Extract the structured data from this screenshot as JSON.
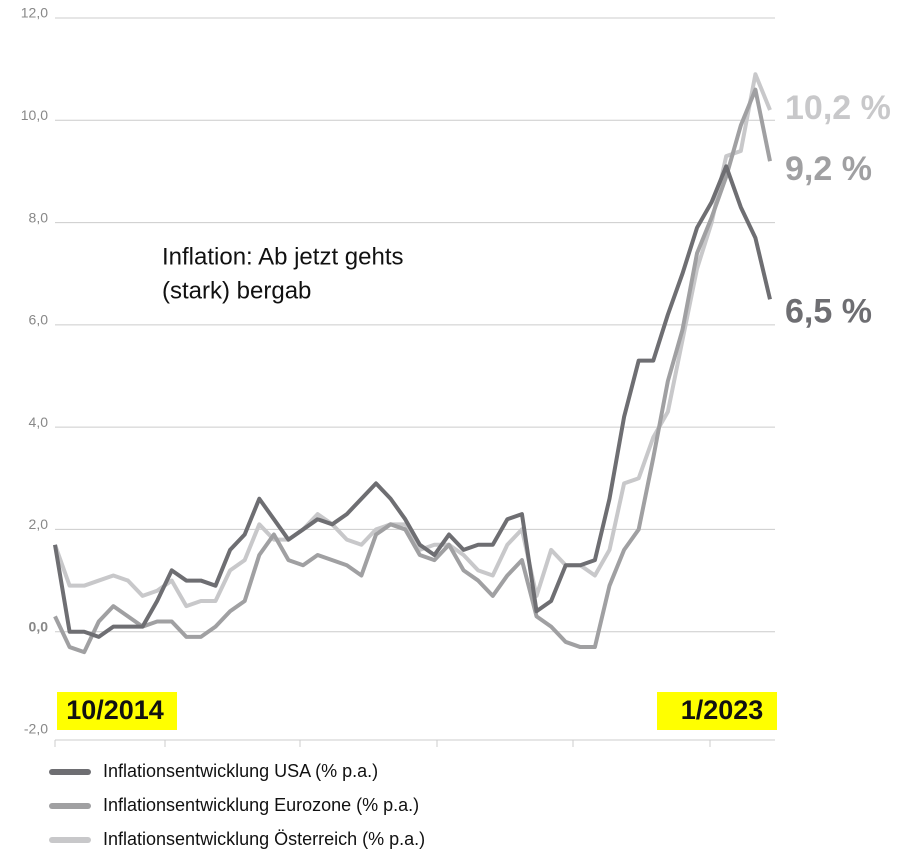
{
  "chart_data": {
    "type": "line",
    "annotation": [
      "Inflation: Ab jetzt gehts",
      "(stark) bergab"
    ],
    "categories": [
      "10/2014",
      null,
      null,
      null,
      null,
      null,
      null,
      null,
      null,
      null,
      null,
      null,
      null,
      null,
      null,
      null,
      null,
      null,
      null,
      null,
      null,
      null,
      null,
      null,
      null,
      null,
      null,
      null,
      null,
      null,
      null,
      null,
      null,
      null,
      null,
      null,
      null,
      null,
      null,
      null,
      null,
      null,
      null,
      null,
      null,
      null,
      null,
      null,
      null,
      "1/2023"
    ],
    "series": [
      {
        "name": "Inflationsentwicklung USA (% p.a.)",
        "color": "#6e6e72",
        "end_label": "6,5 %",
        "values": [
          1.7,
          0.0,
          0.0,
          -0.1,
          0.1,
          0.1,
          0.1,
          0.6,
          1.2,
          1.0,
          1.0,
          0.9,
          1.6,
          1.9,
          2.6,
          2.2,
          1.8,
          2.0,
          2.2,
          2.1,
          2.3,
          2.6,
          2.9,
          2.6,
          2.2,
          1.7,
          1.5,
          1.9,
          1.6,
          1.7,
          1.7,
          2.2,
          2.3,
          0.4,
          0.6,
          1.3,
          1.3,
          1.4,
          2.6,
          4.2,
          5.3,
          5.3,
          6.2,
          7.0,
          7.9,
          8.4,
          9.1,
          8.3,
          7.7,
          6.5
        ]
      },
      {
        "name": "Inflationsentwicklung Eurozone (% p.a.)",
        "color": "#a0a0a2",
        "end_label": "9,2 %",
        "values": [
          0.3,
          -0.3,
          -0.4,
          0.2,
          0.5,
          0.3,
          0.1,
          0.2,
          0.2,
          -0.1,
          -0.1,
          0.1,
          0.4,
          0.6,
          1.5,
          1.9,
          1.4,
          1.3,
          1.5,
          1.4,
          1.3,
          1.1,
          1.9,
          2.1,
          2.0,
          1.5,
          1.4,
          1.7,
          1.2,
          1.0,
          0.7,
          1.1,
          1.4,
          0.3,
          0.1,
          -0.2,
          -0.3,
          -0.3,
          0.9,
          1.6,
          2.0,
          3.4,
          4.9,
          5.9,
          7.4,
          8.1,
          8.9,
          9.9,
          10.6,
          9.2
        ]
      },
      {
        "name": "Inflationsentwicklung Österreich (% p.a.)",
        "color": "#c8c8ca",
        "end_label": "10,2 %",
        "values": [
          1.7,
          0.9,
          0.9,
          1.0,
          1.1,
          1.0,
          0.7,
          0.8,
          1.0,
          0.5,
          0.6,
          0.6,
          1.2,
          1.4,
          2.1,
          1.8,
          1.8,
          2.0,
          2.3,
          2.1,
          1.8,
          1.7,
          2.0,
          2.1,
          2.1,
          1.6,
          1.7,
          1.7,
          1.5,
          1.2,
          1.1,
          1.7,
          2.0,
          0.7,
          1.6,
          1.3,
          1.3,
          1.1,
          1.6,
          2.9,
          3.0,
          3.8,
          4.3,
          5.7,
          7.1,
          8.0,
          9.3,
          9.4,
          10.9,
          10.2
        ]
      }
    ],
    "ylim": [
      -2,
      12
    ],
    "yticks": [
      {
        "value": -2,
        "label": "-2,0"
      },
      {
        "value": 0,
        "label": "0,0"
      },
      {
        "value": 2,
        "label": "2,0"
      },
      {
        "value": 4,
        "label": "4,0"
      },
      {
        "value": 6,
        "label": "6,0"
      },
      {
        "value": 8,
        "label": "8,0"
      },
      {
        "value": 10,
        "label": "10,0"
      },
      {
        "value": 12,
        "label": "12,0"
      }
    ],
    "grid": true,
    "label_highlight": "#ffff00"
  }
}
